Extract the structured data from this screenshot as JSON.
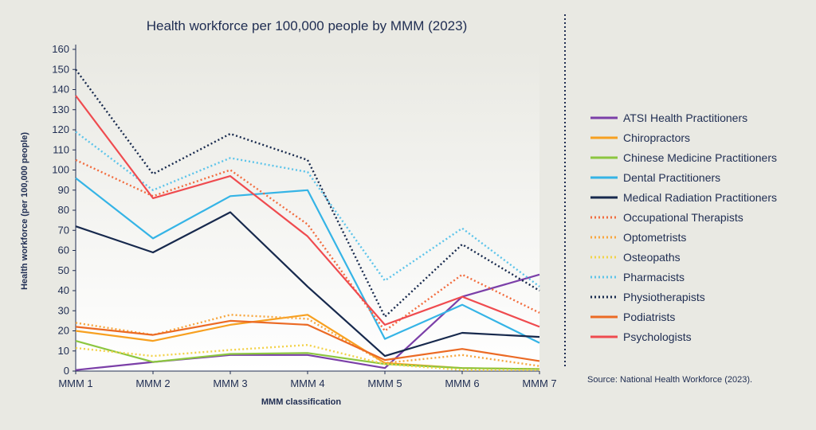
{
  "chart_data": {
    "type": "line",
    "title": "Health workforce per 100,000 people by MMM (2023)",
    "xlabel": "MMM classification",
    "ylabel": "Health workforce (per 100,000 people)",
    "ylim": [
      0,
      160
    ],
    "yticks": [
      0,
      10,
      20,
      30,
      40,
      50,
      60,
      70,
      80,
      90,
      100,
      110,
      120,
      130,
      140,
      150,
      160
    ],
    "grid": false,
    "legend_position": "right",
    "categories": [
      "MMM 1",
      "MMM 2",
      "MMM 3",
      "MMM 4",
      "MMM 5",
      "MMM 6",
      "MMM 7"
    ],
    "series": [
      {
        "name": "ATSI Health Practitioners",
        "color": "#7b3fa8",
        "style": "solid",
        "values": [
          0.5,
          4.5,
          8,
          8,
          1.5,
          37,
          48
        ]
      },
      {
        "name": "Chiropractors",
        "color": "#f7a020",
        "style": "solid",
        "values": [
          20,
          15,
          23,
          28,
          4,
          1.5,
          1
        ]
      },
      {
        "name": "Chinese Medicine Practitioners",
        "color": "#8cc63f",
        "style": "solid",
        "values": [
          15,
          4.5,
          8.5,
          9,
          3.5,
          1.5,
          1
        ]
      },
      {
        "name": "Dental Practitioners",
        "color": "#35b4e6",
        "style": "solid",
        "values": [
          96,
          66,
          87,
          90,
          16,
          33,
          14
        ]
      },
      {
        "name": "Medical Radiation Practitioners",
        "color": "#17294d",
        "style": "solid",
        "values": [
          72,
          59,
          79,
          42,
          7.5,
          19,
          17
        ]
      },
      {
        "name": "Occupational Therapists",
        "color": "#f26c3e",
        "style": "dotted",
        "values": [
          105,
          87,
          100,
          73,
          20,
          48,
          29
        ]
      },
      {
        "name": "Optometrists",
        "color": "#f7a63e",
        "style": "dotted",
        "values": [
          24,
          18,
          28,
          26,
          4,
          8,
          2.5
        ]
      },
      {
        "name": "Osteopaths",
        "color": "#f3d24a",
        "style": "dotted",
        "values": [
          11.5,
          7.5,
          10.5,
          13,
          3.5,
          0.5,
          0.5
        ]
      },
      {
        "name": "Pharmacists",
        "color": "#5cc4ea",
        "style": "dotted",
        "values": [
          119,
          90,
          106,
          99,
          45,
          71,
          42
        ]
      },
      {
        "name": "Physiotherapists",
        "color": "#17294d",
        "style": "dotted",
        "values": [
          150,
          98,
          118,
          105,
          27,
          63,
          40
        ]
      },
      {
        "name": "Podiatrists",
        "color": "#eb6a24",
        "style": "solid",
        "values": [
          22,
          18,
          25,
          23,
          5.5,
          11,
          5
        ]
      },
      {
        "name": "Psychologists",
        "color": "#ef4b4f",
        "style": "solid",
        "values": [
          137,
          86,
          97,
          67,
          23,
          37,
          22
        ]
      }
    ],
    "source": "Source: National Health Workforce (2023)."
  }
}
